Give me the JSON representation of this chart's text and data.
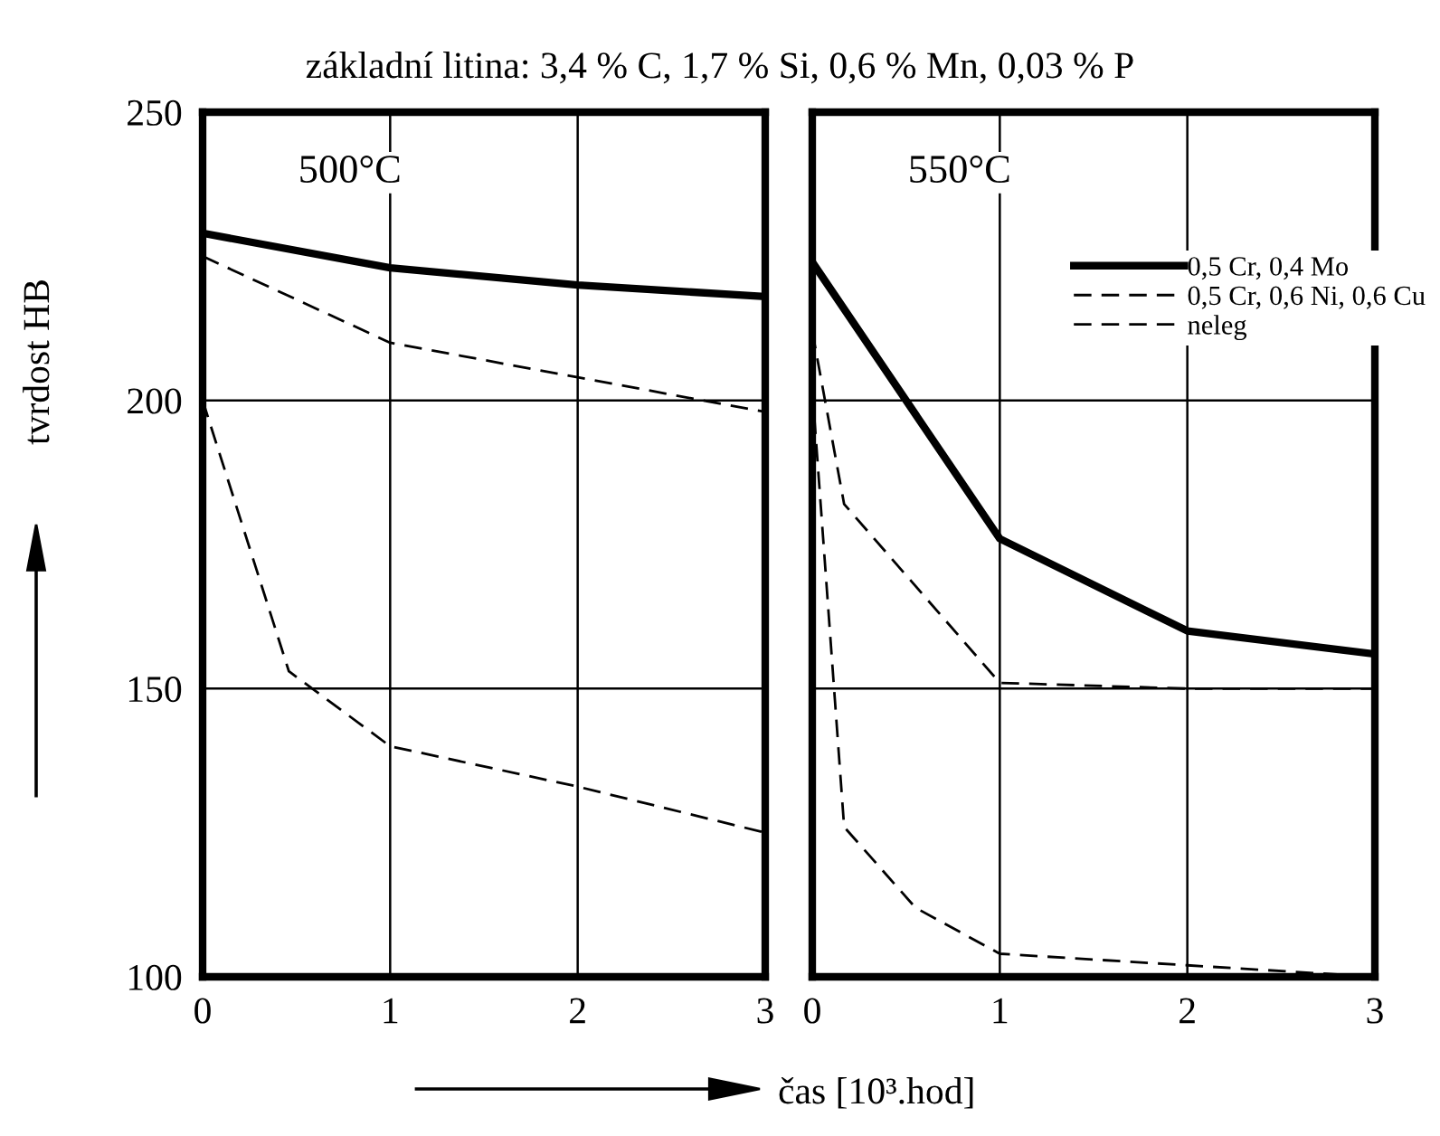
{
  "chart_data": [
    {
      "type": "line",
      "title": "základní litina: 3,4 % C, 1,7 % Si, 0,6 % Mn, 0,03 % P",
      "ylabel": "tvrdost HB",
      "xlabel": "čas [10³.hod]",
      "annotations": [
        "500°C"
      ],
      "xlim": [
        0,
        3
      ],
      "ylim": [
        100,
        250
      ],
      "xticks": [
        0,
        1,
        2,
        3
      ],
      "yticks": [
        100,
        150,
        200,
        250
      ],
      "grid": true,
      "legend": false,
      "series": [
        {
          "color": "#000000",
          "line_style": "solid",
          "x": [
            0,
            1,
            2,
            3
          ],
          "values": [
            229,
            223,
            220,
            218
          ]
        },
        {
          "color": "#000000",
          "line_style": "dashed",
          "x": [
            0,
            1,
            2,
            3
          ],
          "values": [
            225,
            210,
            204,
            198
          ]
        },
        {
          "color": "#000000",
          "line_style": "dashed",
          "x": [
            0,
            0.46,
            1,
            2,
            3
          ],
          "values": [
            200,
            153,
            140,
            133,
            125
          ]
        }
      ]
    },
    {
      "type": "line",
      "annotations": [
        "550°C"
      ],
      "xlim": [
        0,
        3
      ],
      "ylim": [
        100,
        250
      ],
      "xticks": [
        0,
        1,
        2,
        3
      ],
      "yticks": [
        100,
        150,
        200,
        250
      ],
      "tick_labels": "x",
      "grid": true,
      "legend": "top right",
      "series": [
        {
          "name": "0,5 Cr, 0,4 Mo",
          "color": "#000000",
          "line_style": "solid",
          "x": [
            0,
            1,
            2,
            3
          ],
          "values": [
            224,
            176,
            160,
            156
          ]
        },
        {
          "name": "0,5 Cr, 0,6 Ni, 0,6 Cu",
          "color": "#000000",
          "line_style": "dashed",
          "x": [
            0,
            0.17,
            1,
            2,
            3
          ],
          "values": [
            212,
            182,
            151,
            150,
            150
          ]
        },
        {
          "name": "neleg",
          "color": "#000000",
          "line_style": "dashed",
          "x": [
            0,
            0.17,
            0.55,
            1,
            2,
            3
          ],
          "values": [
            202,
            126,
            112,
            104,
            102,
            100
          ]
        }
      ]
    }
  ]
}
